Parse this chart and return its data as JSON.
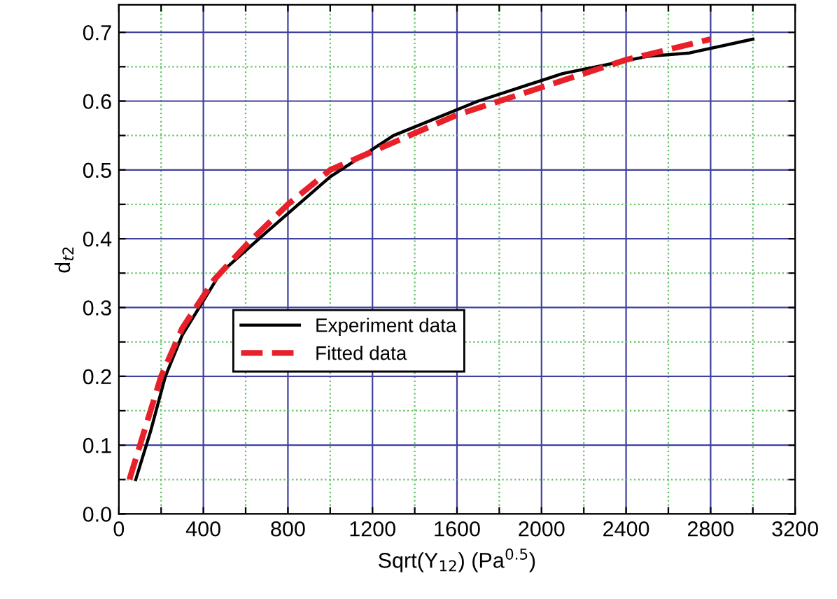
{
  "chart_data": {
    "type": "line",
    "xlabel": "Sqrt(Y$_{12}$) (Pa$^{0.5}$)",
    "ylabel": "d$_{t2}$",
    "series": [
      {
        "name": "Experiment data",
        "color": "#000000",
        "line_style": "solid",
        "x": [
          80,
          150,
          220,
          300,
          480,
          700,
          1000,
          1300,
          1700,
          2100,
          2500,
          2700,
          3000
        ],
        "values": [
          0.05,
          0.12,
          0.2,
          0.26,
          0.35,
          0.41,
          0.49,
          0.55,
          0.6,
          0.64,
          0.665,
          0.67,
          0.69
        ]
      },
      {
        "name": "Fitted data",
        "color": "#e8202a",
        "line_style": "dashed",
        "x": [
          50,
          100,
          200,
          300,
          450,
          600,
          800,
          1000,
          1300,
          1600,
          2000,
          2400,
          2800
        ],
        "values": [
          0.05,
          0.1,
          0.2,
          0.27,
          0.34,
          0.39,
          0.45,
          0.5,
          0.54,
          0.58,
          0.62,
          0.66,
          0.69
        ]
      }
    ],
    "xlim": [
      0,
      3200
    ],
    "xticks": [
      0,
      {
        "value": 200,
        "label": null
      },
      400,
      {
        "value": 600,
        "label": null
      },
      800,
      {
        "value": 1000,
        "label": null
      },
      1200,
      {
        "value": 1400,
        "label": null
      },
      1600,
      {
        "value": 1800,
        "label": null
      },
      2000,
      {
        "value": 2200,
        "label": null
      },
      2400,
      {
        "value": 2600,
        "label": null
      },
      2800,
      {
        "value": 3000,
        "label": null
      },
      3200
    ],
    "ylim": [
      0,
      0.74
    ],
    "yticks": [
      {
        "value": 0,
        "label": "0.0"
      },
      {
        "value": 0.05,
        "label": null
      },
      0.1,
      {
        "value": 0.15,
        "label": null
      },
      0.2,
      {
        "value": 0.25,
        "label": null
      },
      0.3,
      {
        "value": 0.35,
        "label": null
      },
      0.4,
      {
        "value": 0.45,
        "label": null
      },
      0.5,
      {
        "value": 0.55,
        "label": null
      },
      0.6,
      {
        "value": 0.65,
        "label": null
      },
      0.7
    ],
    "grid": true,
    "legend": "center",
    "marker": "none"
  }
}
